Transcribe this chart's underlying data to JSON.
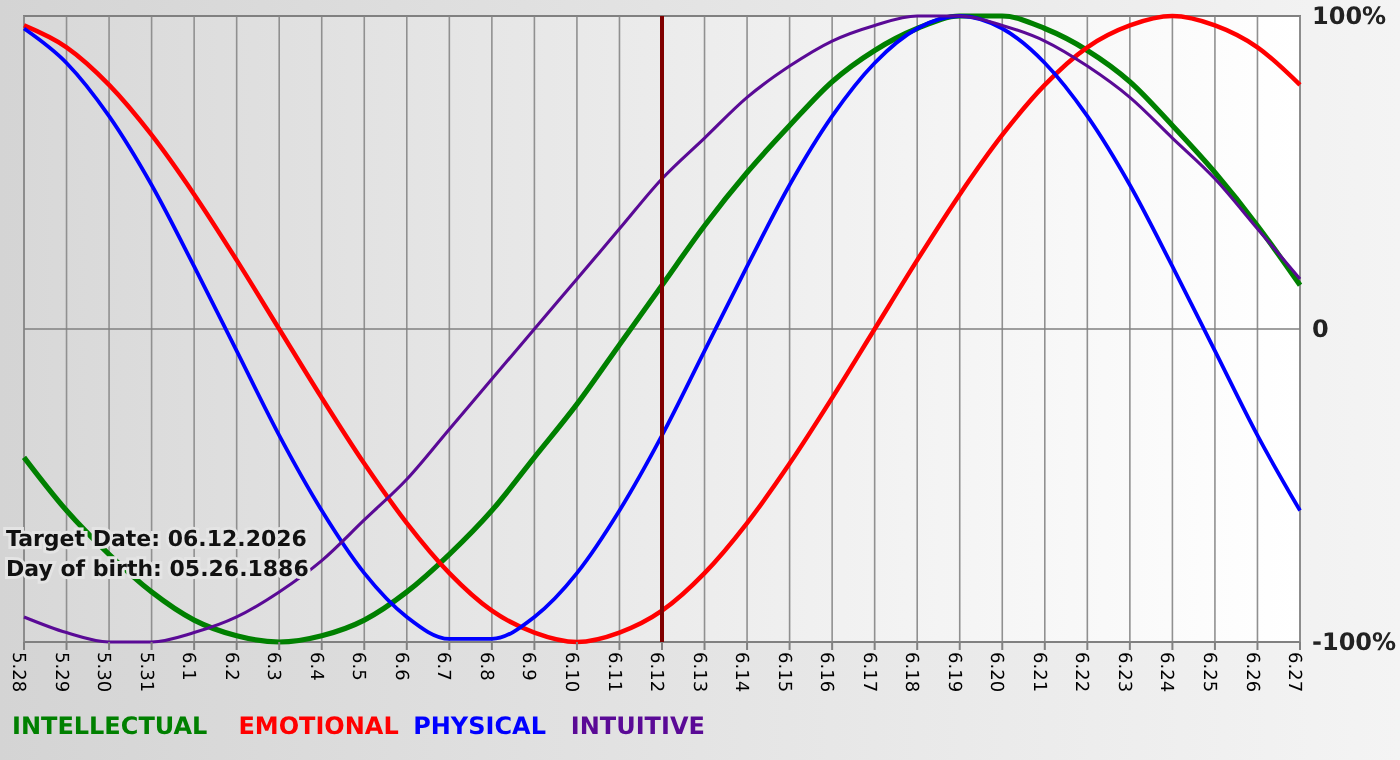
{
  "chart_data": {
    "type": "line",
    "categories": [
      "5.28",
      "5.29",
      "5.30",
      "5.31",
      "6.1",
      "6.2",
      "6.3",
      "6.4",
      "6.5",
      "6.6",
      "6.7",
      "6.8",
      "6.9",
      "6.10",
      "6.11",
      "6.12",
      "6.13",
      "6.14",
      "6.15",
      "6.16",
      "6.17",
      "6.18",
      "6.19",
      "6.20",
      "6.21",
      "6.22",
      "6.23",
      "6.24",
      "6.25",
      "6.26",
      "6.27"
    ],
    "series": [
      {
        "name": "INTELLECTUAL",
        "color": "#008000",
        "values": [
          -41,
          -58,
          -72,
          -84,
          -93,
          -98,
          -100,
          -98,
          -93,
          -84,
          -72,
          -58,
          -41,
          -24,
          -5,
          14,
          33,
          50,
          65,
          79,
          89,
          96,
          100,
          100,
          96,
          89,
          79,
          65,
          50,
          33,
          14
        ]
      },
      {
        "name": "EMOTIONAL",
        "color": "#ff0000",
        "values": [
          97,
          90,
          78,
          62,
          43,
          22,
          0,
          -22,
          -43,
          -62,
          -78,
          -90,
          -97,
          -100,
          -97,
          -90,
          -78,
          -62,
          -43,
          -22,
          0,
          22,
          43,
          62,
          78,
          90,
          97,
          100,
          97,
          90,
          78
        ]
      },
      {
        "name": "PHYSICAL",
        "color": "#0000ff",
        "values": [
          96,
          85,
          68,
          46,
          20,
          -7,
          -34,
          -58,
          -78,
          -92,
          -99,
          -99,
          -92,
          -78,
          -58,
          -34,
          -7,
          20,
          46,
          68,
          85,
          96,
          100,
          96,
          85,
          68,
          46,
          20,
          -7,
          -34,
          -58
        ]
      },
      {
        "name": "INTUITIVE",
        "color": "#5a0a96",
        "values": [
          -92,
          -97,
          -100,
          -100,
          -97,
          -92,
          -84,
          -74,
          -61,
          -48,
          -32,
          -16,
          0,
          16,
          32,
          48,
          61,
          74,
          84,
          92,
          97,
          100,
          100,
          97,
          92,
          84,
          74,
          61,
          48,
          32,
          16
        ]
      }
    ],
    "ylim": [
      -100,
      100
    ],
    "yticks": [
      {
        "value": -100,
        "label": "-100%"
      },
      0,
      {
        "value": 100,
        "label": "100%"
      }
    ],
    "grid": true,
    "legend": "bottom left",
    "marker": "none",
    "line_style": "solid",
    "ref_lines": [
      {
        "axis": "x",
        "value": "6.12",
        "color": "#800000"
      }
    ],
    "annotations": [
      "Target Date: 06.12.2026",
      "Day of birth: 05.26.1886"
    ]
  }
}
